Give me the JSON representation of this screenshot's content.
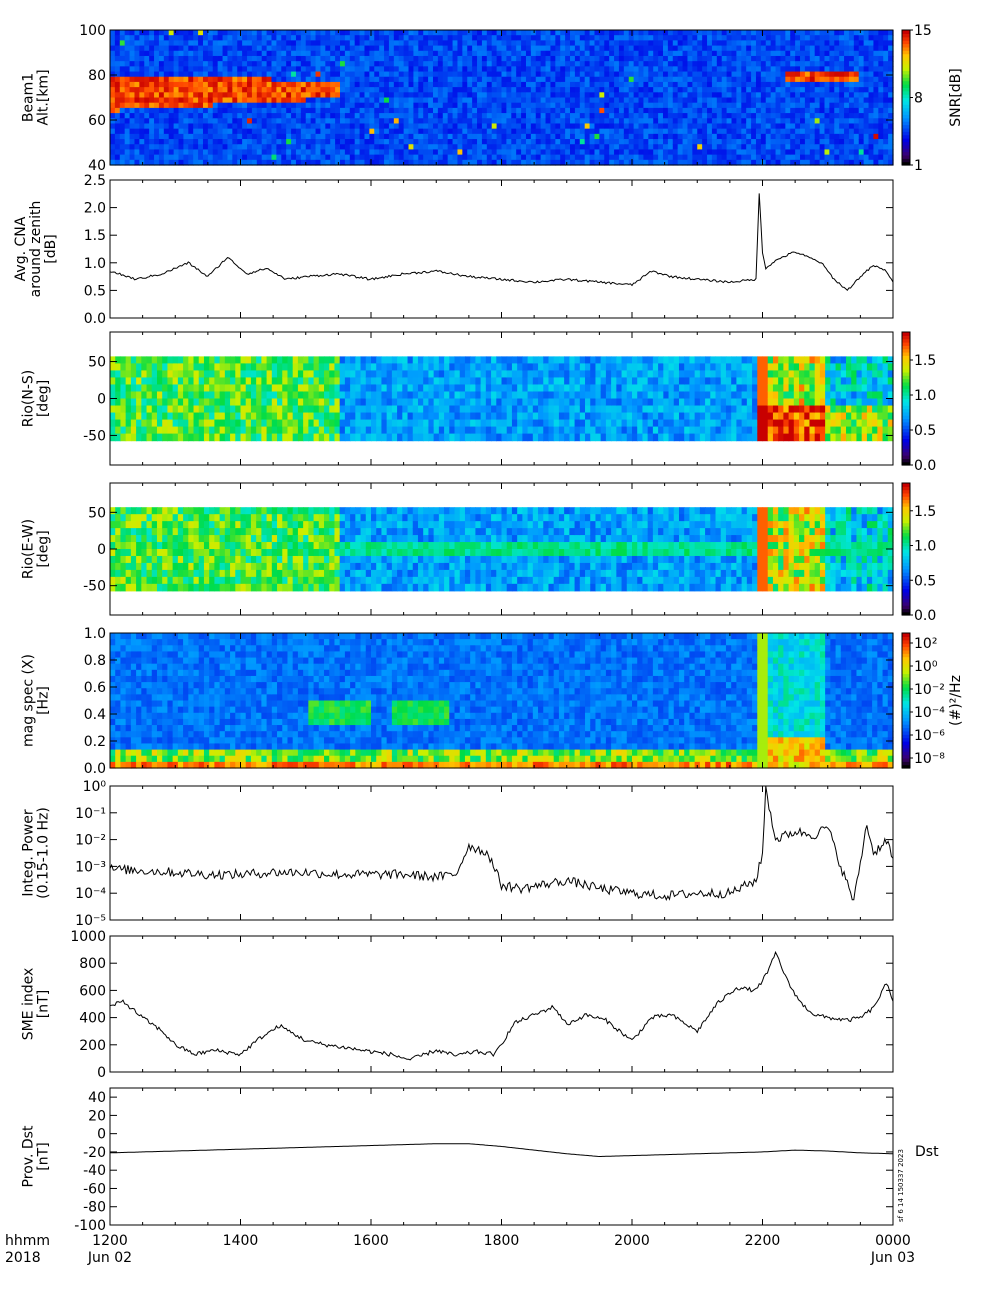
{
  "time_axis": {
    "row1_label": "hhmm",
    "row2_label": "2018",
    "start_date": "Jun 02",
    "end_date": "Jun 03",
    "ticks": [
      "1200",
      "1400",
      "1600",
      "1800",
      "2000",
      "2200",
      "0000"
    ]
  },
  "footer_text": "sf 6 14 150337 2023",
  "chart_data": [
    {
      "type": "heatmap",
      "ylabel_lines": [
        "Beam1",
        "Alt.[km]"
      ],
      "ylim": [
        40,
        100
      ],
      "yticks": [
        "40",
        "60",
        "80",
        "100"
      ],
      "colorbar": {
        "label": "SNR[dB]",
        "ticks": [
          "1",
          "8",
          "15"
        ],
        "range": [
          1,
          15
        ]
      },
      "features": [
        {
          "start_hour": 12.0,
          "end_hour": 15.5,
          "alt_low_km": 64,
          "alt_high_km": 80,
          "level": "high"
        },
        {
          "start_hour": 22.35,
          "end_hour": 23.5,
          "alt_low_km": 76,
          "alt_high_km": 82,
          "level": "high"
        }
      ]
    },
    {
      "type": "line",
      "ylabel_lines": [
        "Avg. CNA",
        "around zenith",
        "[dB]"
      ],
      "ylim": [
        0,
        2.5
      ],
      "yticks": [
        "0.0",
        "0.5",
        "1.0",
        "1.5",
        "2.0",
        "2.5"
      ],
      "x_hours": [
        12.0,
        12.4,
        12.8,
        13.2,
        13.5,
        13.8,
        14.1,
        14.4,
        14.7,
        15.0,
        15.5,
        16.0,
        16.5,
        17.0,
        17.5,
        18.0,
        18.5,
        19.0,
        19.5,
        20.0,
        20.3,
        20.6,
        21.0,
        21.5,
        21.9,
        21.95,
        22.0,
        22.05,
        22.15,
        22.3,
        22.5,
        22.7,
        22.9,
        23.1,
        23.3,
        23.5,
        23.7,
        23.9,
        24.0
      ],
      "values": [
        0.85,
        0.7,
        0.8,
        1.0,
        0.75,
        1.1,
        0.8,
        0.9,
        0.7,
        0.75,
        0.8,
        0.7,
        0.8,
        0.85,
        0.75,
        0.7,
        0.65,
        0.7,
        0.65,
        0.6,
        0.85,
        0.75,
        0.7,
        0.65,
        0.7,
        2.25,
        1.2,
        0.9,
        1.0,
        1.1,
        1.2,
        1.1,
        1.0,
        0.7,
        0.5,
        0.75,
        0.95,
        0.85,
        0.65
      ]
    },
    {
      "type": "heatmap",
      "ylabel_lines": [
        "Rio(N-S)",
        "[deg]"
      ],
      "ylim": [
        -90,
        90
      ],
      "yticks": [
        "-50",
        "0",
        "50"
      ],
      "colorbar": {
        "label": "",
        "ticks": [
          "0.0",
          "0.5",
          "1.0",
          "1.5"
        ],
        "range": [
          0,
          1.9
        ]
      },
      "data_range_deg": [
        -57,
        57
      ],
      "event_hour": 22.0
    },
    {
      "type": "heatmap",
      "ylabel_lines": [
        "Rio(E-W)",
        "[deg]"
      ],
      "ylim": [
        -90,
        90
      ],
      "yticks": [
        "-50",
        "0",
        "50"
      ],
      "colorbar": {
        "label": "",
        "ticks": [
          "0.0",
          "0.5",
          "1.0",
          "1.5"
        ],
        "range": [
          0,
          1.9
        ]
      },
      "data_range_deg": [
        -57,
        57
      ],
      "event_hour": 22.0
    },
    {
      "type": "heatmap",
      "ylabel_lines": [
        "mag spec (X)",
        "[Hz]"
      ],
      "ylim": [
        0,
        1.0
      ],
      "yticks": [
        "0.0",
        "0.2",
        "0.4",
        "0.6",
        "0.8",
        "1.0"
      ],
      "colorbar": {
        "label": "(#)²/Hz",
        "ticks": [
          "10²",
          "10⁰",
          "10⁻²",
          "10⁻⁴",
          "10⁻⁶",
          "10⁻⁸"
        ]
      },
      "event_hour": 22.0
    },
    {
      "type": "line",
      "ylabel_lines": [
        "Integ. Power",
        "(0.15-1.0 Hz)"
      ],
      "yscale": "log",
      "ylim": [
        1e-05,
        1
      ],
      "yticks": [
        "10⁻⁵",
        "10⁻⁴",
        "10⁻³",
        "10⁻²",
        "10⁻¹",
        "10⁰"
      ],
      "x_hours": [
        12.0,
        12.5,
        13.0,
        13.5,
        14.0,
        14.5,
        15.0,
        15.5,
        16.0,
        16.5,
        17.0,
        17.3,
        17.5,
        17.8,
        18.0,
        18.3,
        18.6,
        19.0,
        19.5,
        20.0,
        20.5,
        21.0,
        21.5,
        21.9,
        22.0,
        22.05,
        22.2,
        22.5,
        22.8,
        23.0,
        23.2,
        23.4,
        23.6,
        23.7,
        23.9,
        24.0
      ],
      "values": [
        0.0008,
        0.0007,
        0.0006,
        0.0005,
        0.0005,
        0.0006,
        0.0006,
        0.0005,
        0.0005,
        0.0005,
        0.0004,
        0.0005,
        0.006,
        0.003,
        0.0002,
        0.00015,
        0.0002,
        0.0003,
        0.00015,
        0.0001,
        8e-05,
        0.0001,
        0.0001,
        0.0003,
        0.003,
        0.8,
        0.01,
        0.02,
        0.015,
        0.03,
        0.001,
        5e-05,
        0.04,
        0.003,
        0.01,
        0.002
      ]
    },
    {
      "type": "line",
      "ylabel_lines": [
        "SME index",
        "[nT]"
      ],
      "ylim": [
        0,
        1000
      ],
      "yticks": [
        "0",
        "200",
        "400",
        "600",
        "800",
        "1000"
      ],
      "x_hours": [
        12.0,
        12.2,
        12.5,
        12.8,
        13.0,
        13.3,
        13.6,
        14.0,
        14.3,
        14.6,
        15.0,
        15.3,
        15.6,
        16.0,
        16.3,
        16.6,
        17.0,
        17.3,
        17.6,
        17.9,
        18.2,
        18.5,
        18.8,
        19.0,
        19.3,
        19.6,
        20.0,
        20.3,
        20.6,
        21.0,
        21.3,
        21.6,
        21.9,
        22.1,
        22.2,
        22.4,
        22.6,
        22.8,
        23.0,
        23.3,
        23.5,
        23.7,
        23.9,
        24.0
      ],
      "values": [
        480,
        520,
        400,
        300,
        200,
        130,
        160,
        130,
        250,
        340,
        230,
        200,
        180,
        150,
        130,
        90,
        160,
        120,
        150,
        130,
        360,
        420,
        480,
        350,
        420,
        380,
        230,
        400,
        420,
        300,
        500,
        620,
        600,
        750,
        880,
        650,
        500,
        420,
        400,
        380,
        400,
        470,
        650,
        520
      ]
    },
    {
      "type": "line",
      "ylabel_lines": [
        "Prov. Dst",
        "[nT]"
      ],
      "ylim": [
        -100,
        50
      ],
      "yticks": [
        "-100",
        "-80",
        "-60",
        "-40",
        "-20",
        "0",
        "20",
        "40"
      ],
      "series_label": "Dst",
      "x_hours": [
        12.0,
        12.5,
        13.0,
        13.5,
        14.0,
        14.5,
        15.0,
        15.5,
        16.0,
        16.5,
        17.0,
        17.5,
        18.0,
        18.5,
        19.0,
        19.5,
        20.0,
        20.5,
        21.0,
        21.5,
        22.0,
        22.5,
        23.0,
        23.5,
        24.0
      ],
      "values": [
        -21,
        -20,
        -19,
        -18,
        -17,
        -16,
        -15,
        -14,
        -13,
        -12,
        -11,
        -11,
        -14,
        -18,
        -22,
        -25,
        -24,
        -23,
        -22,
        -21,
        -20,
        -18,
        -19,
        -21,
        -22
      ]
    }
  ]
}
